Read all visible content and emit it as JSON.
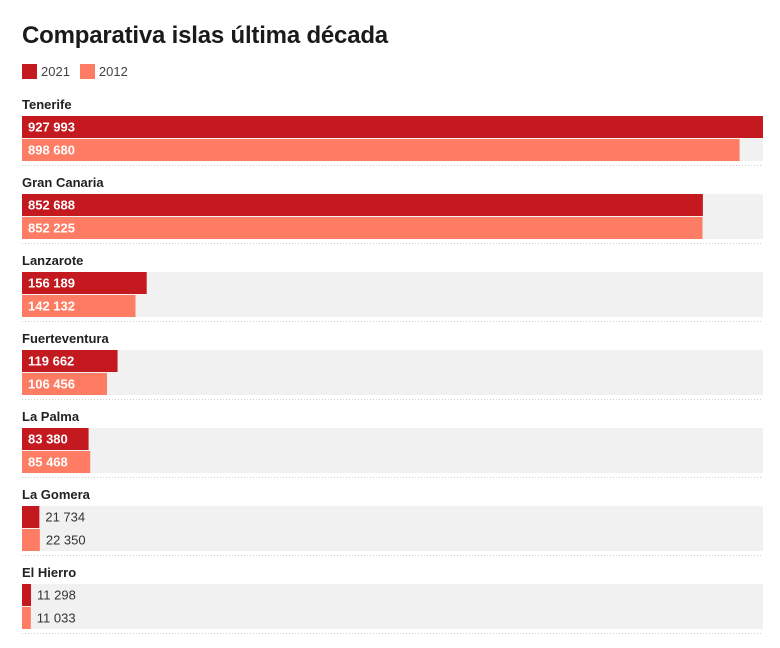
{
  "chart_data": {
    "type": "bar",
    "orientation": "horizontal",
    "title": "Comparativa islas última década",
    "categories": [
      "Tenerife",
      "Gran Canaria",
      "Lanzarote",
      "Fuerteventura",
      "La Palma",
      "La Gomera",
      "El Hierro"
    ],
    "series": [
      {
        "name": "2021",
        "color": "#c4191f",
        "values": [
          927993,
          852688,
          156189,
          119662,
          83380,
          21734,
          11298
        ],
        "labels": [
          "927 993",
          "852 688",
          "156 189",
          "119 662",
          "83 380",
          "21 734",
          "11 298"
        ]
      },
      {
        "name": "2012",
        "color": "#ff7c64",
        "values": [
          898680,
          852225,
          142132,
          106456,
          85468,
          22350,
          11033
        ],
        "labels": [
          "898 680",
          "852 225",
          "142 132",
          "106 456",
          "85 468",
          "22 350",
          "11 033"
        ]
      }
    ],
    "xlim": [
      0,
      927993
    ],
    "grid": false,
    "legend_position": "top-left"
  },
  "colors": {
    "track": "#f1f1f1",
    "separator": "#cccccc",
    "label_inside": "#ffffff",
    "label_outside": "#333333"
  }
}
